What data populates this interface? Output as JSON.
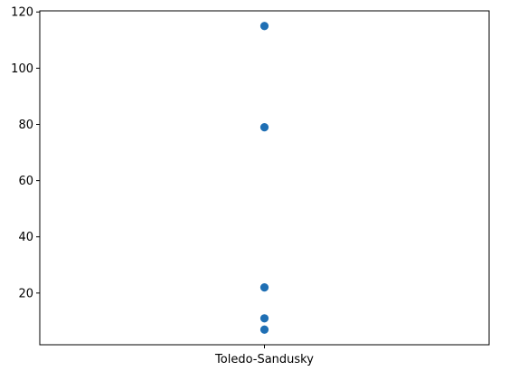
{
  "chart_data": {
    "type": "scatter",
    "title": "",
    "xlabel": "",
    "ylabel": "",
    "categories": [
      "Toledo-Sandusky"
    ],
    "series": [
      {
        "x": [
          "Toledo-Sandusky",
          "Toledo-Sandusky",
          "Toledo-Sandusky",
          "Toledo-Sandusky",
          "Toledo-Sandusky"
        ],
        "y": [
          115,
          79,
          22,
          11,
          7
        ],
        "color": "#1f6fb4"
      }
    ],
    "ylim": [
      1.6,
      120.4
    ],
    "yticks": [
      20,
      40,
      60,
      80,
      100,
      120
    ],
    "ytick_labels": [
      "20",
      "40",
      "60",
      "80",
      "100",
      "120"
    ],
    "grid": false,
    "legend": "none"
  }
}
